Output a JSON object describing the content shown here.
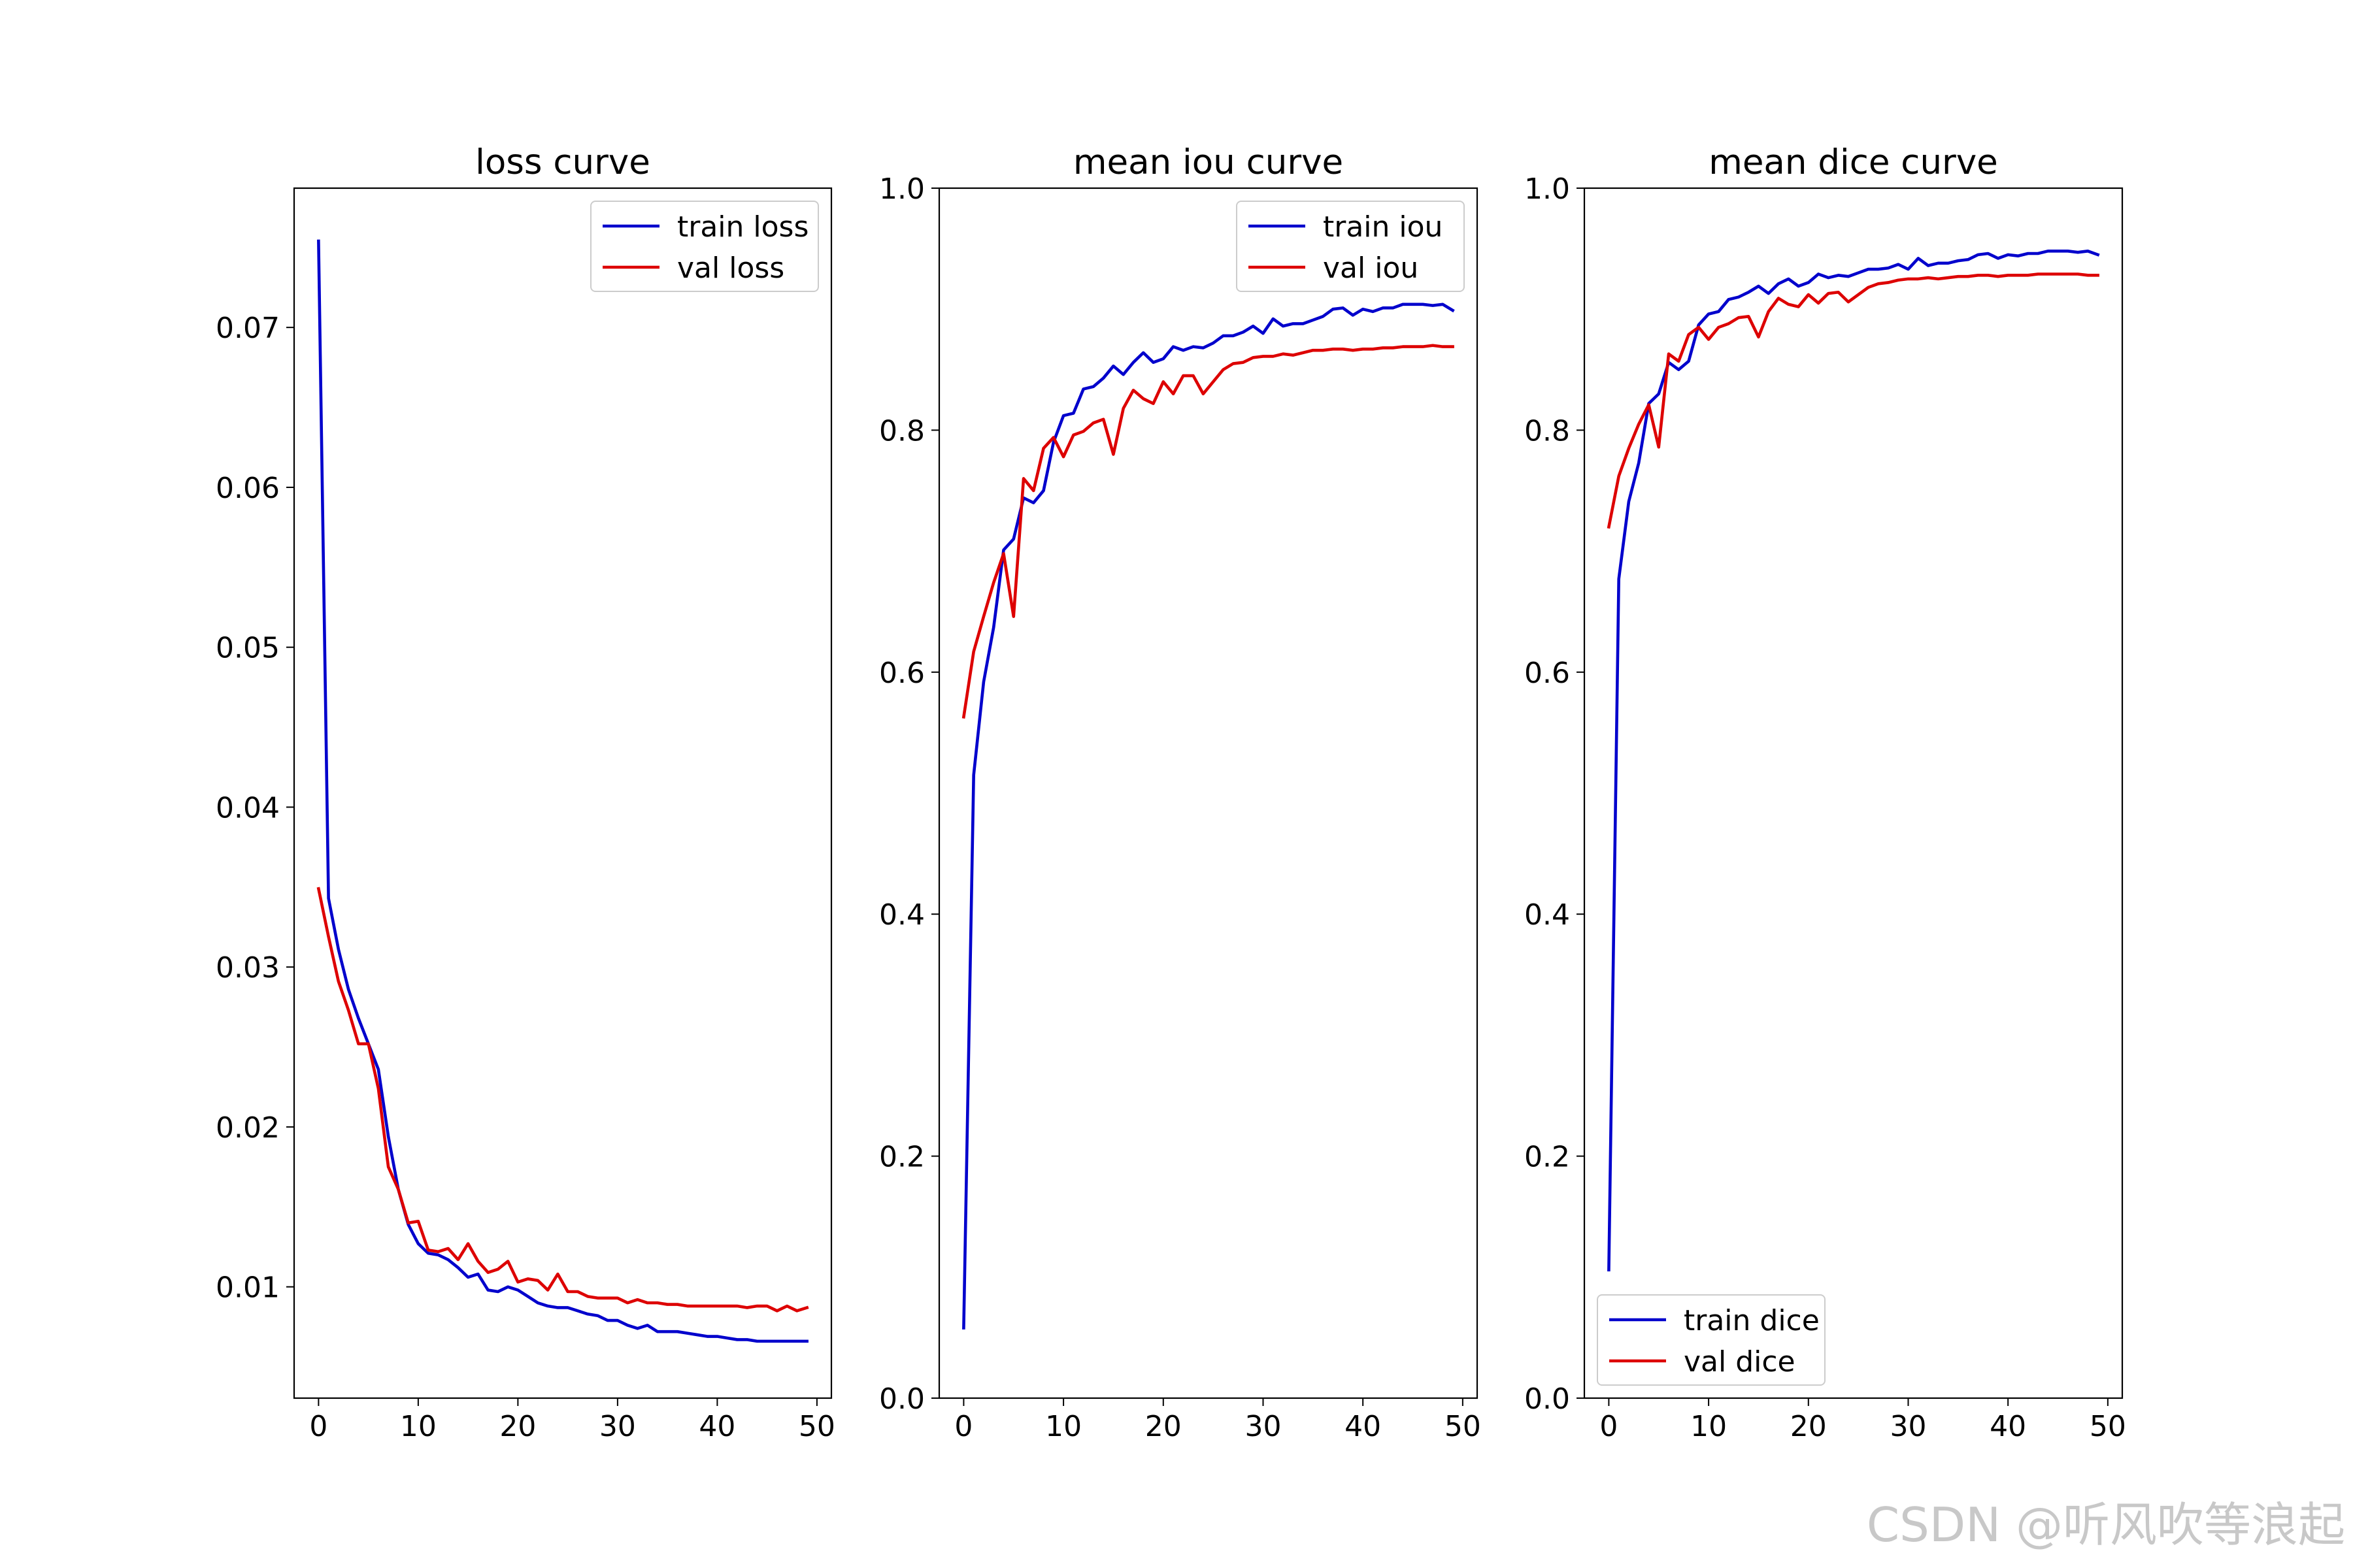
{
  "chart_data": [
    {
      "type": "line",
      "title": "loss curve",
      "xlabel": "",
      "ylabel": "",
      "xlim": [
        -2.45,
        51.45
      ],
      "ylim": [
        0.00304,
        0.07871
      ],
      "xticks": [
        0,
        10,
        20,
        30,
        40,
        50
      ],
      "yticks": [
        0.01,
        0.02,
        0.03,
        0.04,
        0.05,
        0.06,
        0.07
      ],
      "ytick_labels": [
        "0.01",
        "0.02",
        "0.03",
        "0.04",
        "0.05",
        "0.06",
        "0.07"
      ],
      "legend": "upper right",
      "series": [
        {
          "name": "train loss",
          "color": "#0000cc",
          "values": [
            0.0754,
            0.0343,
            0.0311,
            0.0286,
            0.0268,
            0.0252,
            0.0236,
            0.0194,
            0.0161,
            0.0139,
            0.0127,
            0.0121,
            0.012,
            0.0117,
            0.0112,
            0.0106,
            0.0108,
            0.0098,
            0.0097,
            0.01,
            0.0098,
            0.0094,
            0.009,
            0.0088,
            0.0087,
            0.0087,
            0.0085,
            0.0083,
            0.0082,
            0.0079,
            0.0079,
            0.0076,
            0.0074,
            0.0076,
            0.0072,
            0.0072,
            0.0072,
            0.0071,
            0.007,
            0.0069,
            0.0069,
            0.0068,
            0.0067,
            0.0067,
            0.0066,
            0.0066,
            0.0066,
            0.0066,
            0.0066,
            0.0066
          ]
        },
        {
          "name": "val loss",
          "color": "#dd0000",
          "values": [
            0.0349,
            0.0319,
            0.0291,
            0.0273,
            0.0252,
            0.0252,
            0.0224,
            0.0175,
            0.0161,
            0.014,
            0.0141,
            0.0123,
            0.0122,
            0.0124,
            0.0117,
            0.0127,
            0.0116,
            0.0109,
            0.0111,
            0.0116,
            0.0103,
            0.0105,
            0.0104,
            0.0098,
            0.0108,
            0.0097,
            0.0097,
            0.0094,
            0.0093,
            0.0093,
            0.0093,
            0.009,
            0.0092,
            0.009,
            0.009,
            0.0089,
            0.0089,
            0.0088,
            0.0088,
            0.0088,
            0.0088,
            0.0088,
            0.0088,
            0.0087,
            0.0088,
            0.0088,
            0.0085,
            0.0088,
            0.0085,
            0.0087
          ]
        }
      ]
    },
    {
      "type": "line",
      "title": "mean iou curve",
      "xlabel": "",
      "ylabel": "",
      "xlim": [
        -2.45,
        51.45
      ],
      "ylim": [
        0.0,
        1.0
      ],
      "xticks": [
        0,
        10,
        20,
        30,
        40,
        50
      ],
      "yticks": [
        0.0,
        0.2,
        0.4,
        0.6,
        0.8,
        1.0
      ],
      "ytick_labels": [
        "0.0",
        "0.2",
        "0.4",
        "0.6",
        "0.8",
        "1.0"
      ],
      "legend": "upper right",
      "series": [
        {
          "name": "train iou",
          "color": "#0000cc",
          "values": [
            0.058,
            0.515,
            0.592,
            0.637,
            0.701,
            0.71,
            0.744,
            0.74,
            0.75,
            0.79,
            0.812,
            0.814,
            0.834,
            0.836,
            0.843,
            0.853,
            0.846,
            0.856,
            0.864,
            0.856,
            0.859,
            0.869,
            0.866,
            0.869,
            0.868,
            0.872,
            0.878,
            0.878,
            0.881,
            0.886,
            0.88,
            0.892,
            0.886,
            0.888,
            0.888,
            0.891,
            0.894,
            0.9,
            0.901,
            0.895,
            0.9,
            0.898,
            0.901,
            0.901,
            0.904,
            0.904,
            0.904,
            0.903,
            0.904,
            0.899
          ]
        },
        {
          "name": "val iou",
          "color": "#dd0000",
          "values": [
            0.563,
            0.617,
            0.646,
            0.674,
            0.698,
            0.646,
            0.76,
            0.75,
            0.785,
            0.794,
            0.778,
            0.796,
            0.799,
            0.806,
            0.809,
            0.78,
            0.818,
            0.833,
            0.826,
            0.822,
            0.84,
            0.83,
            0.845,
            0.845,
            0.83,
            0.84,
            0.85,
            0.855,
            0.856,
            0.86,
            0.861,
            0.861,
            0.863,
            0.862,
            0.864,
            0.866,
            0.866,
            0.867,
            0.867,
            0.866,
            0.867,
            0.867,
            0.868,
            0.868,
            0.869,
            0.869,
            0.869,
            0.87,
            0.869,
            0.869
          ]
        }
      ]
    },
    {
      "type": "line",
      "title": "mean dice curve",
      "xlabel": "",
      "ylabel": "",
      "xlim": [
        -2.45,
        51.45
      ],
      "ylim": [
        0.0,
        1.0
      ],
      "xticks": [
        0,
        10,
        20,
        30,
        40,
        50
      ],
      "yticks": [
        0.0,
        0.2,
        0.4,
        0.6,
        0.8,
        1.0
      ],
      "ytick_labels": [
        "0.0",
        "0.2",
        "0.4",
        "0.6",
        "0.8",
        "1.0"
      ],
      "legend": "lower left",
      "series": [
        {
          "name": "train dice",
          "color": "#0000cc",
          "values": [
            0.106,
            0.677,
            0.741,
            0.773,
            0.822,
            0.83,
            0.856,
            0.85,
            0.857,
            0.887,
            0.896,
            0.898,
            0.908,
            0.91,
            0.914,
            0.919,
            0.913,
            0.921,
            0.925,
            0.919,
            0.922,
            0.929,
            0.926,
            0.928,
            0.927,
            0.93,
            0.933,
            0.933,
            0.934,
            0.937,
            0.933,
            0.942,
            0.936,
            0.938,
            0.938,
            0.94,
            0.941,
            0.945,
            0.946,
            0.942,
            0.945,
            0.944,
            0.946,
            0.946,
            0.948,
            0.948,
            0.948,
            0.947,
            0.948,
            0.945
          ]
        },
        {
          "name": "val dice",
          "color": "#dd0000",
          "values": [
            0.72,
            0.762,
            0.785,
            0.805,
            0.821,
            0.786,
            0.863,
            0.857,
            0.879,
            0.885,
            0.875,
            0.885,
            0.888,
            0.893,
            0.894,
            0.877,
            0.898,
            0.909,
            0.904,
            0.902,
            0.912,
            0.905,
            0.913,
            0.914,
            0.906,
            0.912,
            0.918,
            0.921,
            0.922,
            0.924,
            0.925,
            0.925,
            0.926,
            0.925,
            0.926,
            0.927,
            0.927,
            0.928,
            0.928,
            0.927,
            0.928,
            0.928,
            0.928,
            0.929,
            0.929,
            0.929,
            0.929,
            0.929,
            0.928,
            0.928
          ]
        }
      ]
    }
  ],
  "watermark": "CSDN @听风吹等浪起"
}
